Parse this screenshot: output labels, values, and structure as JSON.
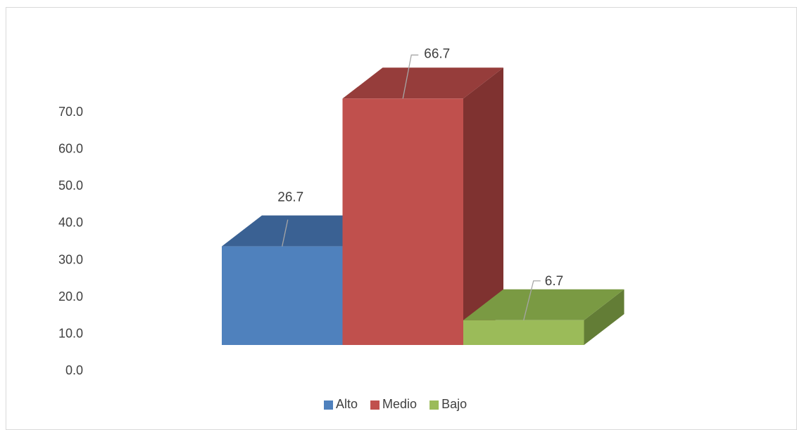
{
  "chart_data": {
    "type": "bar",
    "title": "",
    "xlabel": "",
    "ylabel": "",
    "ylim": [
      0,
      70
    ],
    "yticks": [
      0,
      10,
      20,
      30,
      40,
      50,
      60,
      70
    ],
    "tick_format": "0.0",
    "three_d": true,
    "grid": false,
    "legend_position": "bottom",
    "series": [
      {
        "name": "Alto",
        "value": 26.7,
        "label": "26.7",
        "color": "#4F81BD",
        "top_color": "#3A6193",
        "side_color": "#2E4D75"
      },
      {
        "name": "Medio",
        "value": 66.7,
        "label": "66.7",
        "color": "#C0504D",
        "top_color": "#963D3B",
        "side_color": "#7F3230"
      },
      {
        "name": "Bajo",
        "value": 6.7,
        "label": "6.7",
        "color": "#9BBB59",
        "top_color": "#7A9A43",
        "side_color": "#637D36"
      }
    ],
    "axis_text_color": "#404040",
    "leader_line_color": "#A6A6A6",
    "frame_border_color": "#D9D9D9"
  }
}
